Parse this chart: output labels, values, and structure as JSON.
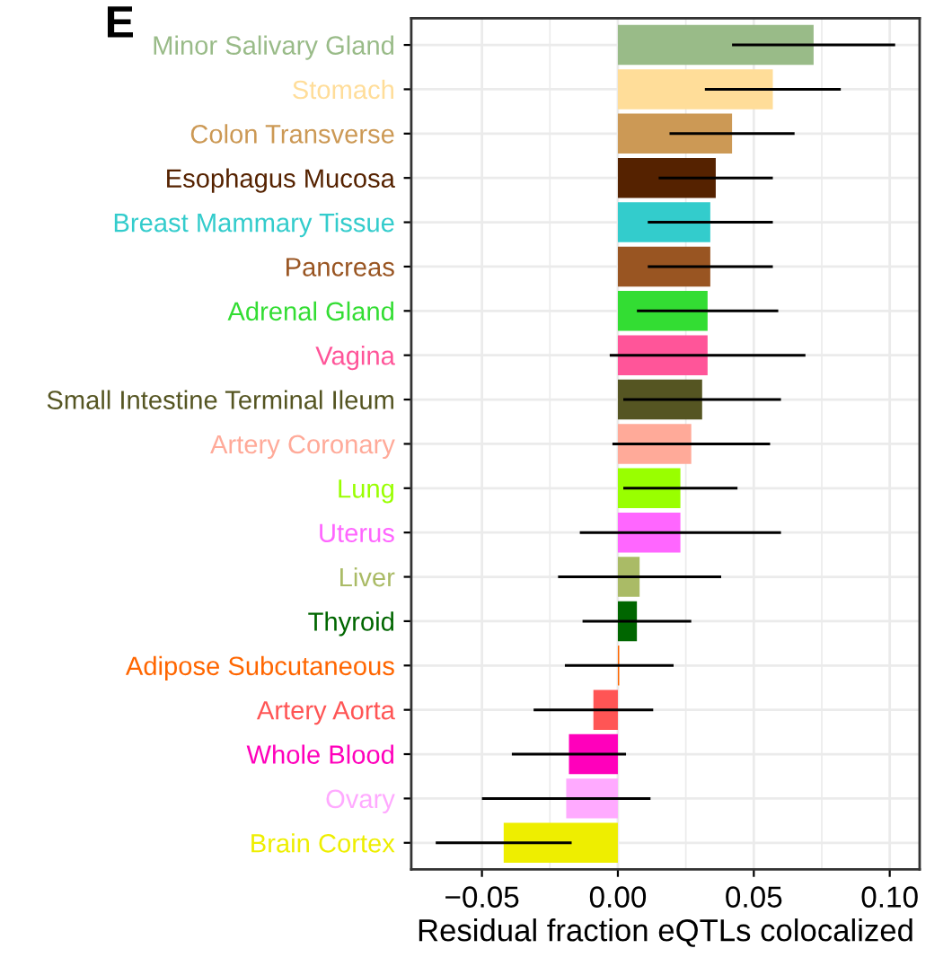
{
  "chart_data": {
    "type": "bar",
    "orientation": "horizontal",
    "title": "E",
    "xlabel": "Residual fraction eQTLs colocalized",
    "categories": [
      "Minor Salivary Gland",
      "Stomach",
      "Colon Transverse",
      "Esophagus Mucosa",
      "Breast Mammary Tissue",
      "Pancreas",
      "Adrenal Gland",
      "Vagina",
      "Small Intestine Terminal Ileum",
      "Artery Coronary",
      "Lung",
      "Uterus",
      "Liver",
      "Thyroid",
      "Adipose Subcutaneous",
      "Artery Aorta",
      "Whole Blood",
      "Ovary",
      "Brain Cortex"
    ],
    "values": [
      0.072,
      0.057,
      0.042,
      0.036,
      0.034,
      0.034,
      0.033,
      0.033,
      0.031,
      0.027,
      0.023,
      0.023,
      0.008,
      0.007,
      0.0005,
      -0.009,
      -0.018,
      -0.019,
      -0.042
    ],
    "errors": [
      0.03,
      0.025,
      0.023,
      0.021,
      0.023,
      0.023,
      0.026,
      0.036,
      0.029,
      0.029,
      0.021,
      0.037,
      0.03,
      0.02,
      0.02,
      0.022,
      0.021,
      0.031,
      0.025
    ],
    "colors": [
      "#99bb88",
      "#ffdd99",
      "#cc9955",
      "#552200",
      "#33cccc",
      "#995522",
      "#33dd33",
      "#ff5599",
      "#555522",
      "#ffaa99",
      "#99ff00",
      "#ff66ff",
      "#aabb66",
      "#006600",
      "#ff6600",
      "#ff5555",
      "#ff00bb",
      "#ffaaff",
      "#eeee00"
    ],
    "xlim": [
      -0.076,
      0.111
    ],
    "xticks": [
      {
        "value": -0.05,
        "label": "−0.05"
      },
      {
        "value": 0,
        "label": "0.00"
      },
      {
        "value": 0.05,
        "label": "0.05"
      },
      {
        "value": 0.1,
        "label": "0.10"
      }
    ],
    "grid": true
  }
}
